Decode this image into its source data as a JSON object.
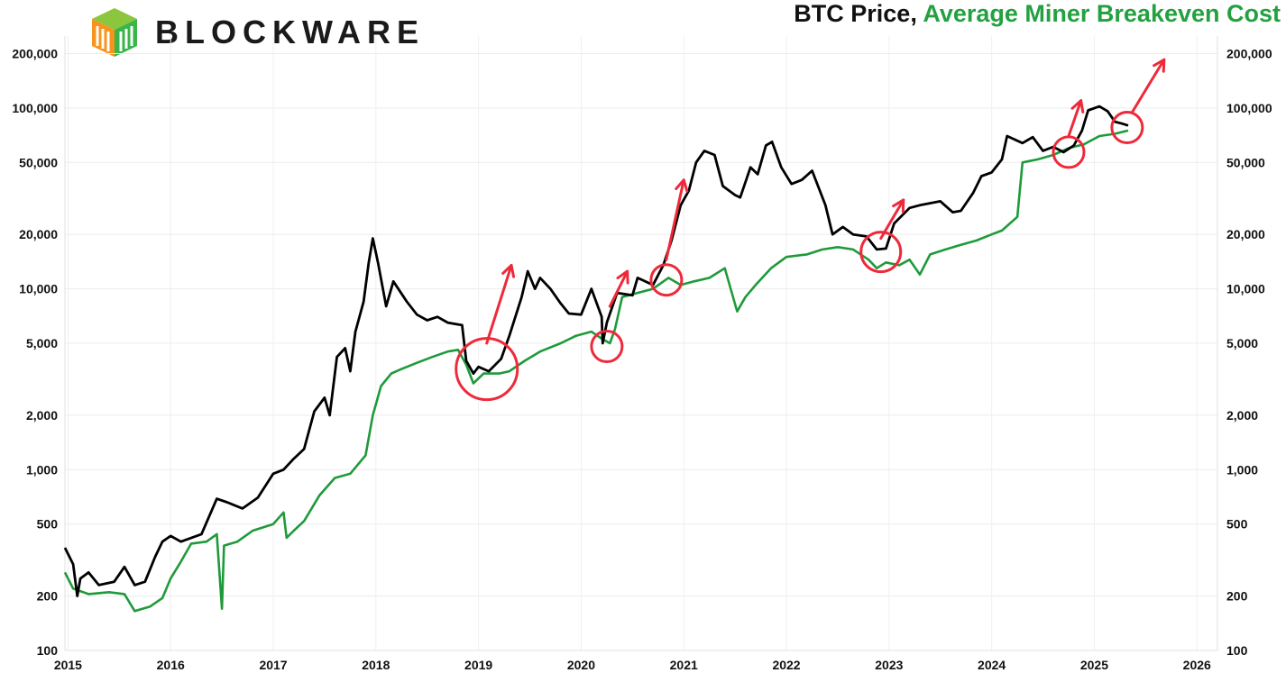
{
  "brand": {
    "name": "BLOCKWARE",
    "logo_icon": "blockware-cube-logo"
  },
  "title": {
    "part1": "BTC Price",
    "sep": ", ",
    "part2": "Average Miner Breakeven Cost"
  },
  "colors": {
    "price": "#000000",
    "breakeven": "#1f9a3b",
    "annotation": "#ee2a3a",
    "title_green": "#23a140"
  },
  "chart_data": {
    "type": "line",
    "title": "BTC Price, Average Miner Breakeven Cost",
    "yscale": "log",
    "ylim": [
      100,
      250000
    ],
    "xlim": [
      2014.97,
      2026.2
    ],
    "yticks": [
      100,
      200,
      500,
      1000,
      2000,
      5000,
      10000,
      20000,
      50000,
      100000,
      200000
    ],
    "ytick_labels": [
      "100",
      "200",
      "500",
      "1,000",
      "2,000",
      "5,000",
      "10,000",
      "20,000",
      "50,000",
      "100,000",
      "200,000"
    ],
    "xticks": [
      2015,
      2016,
      2017,
      2018,
      2019,
      2020,
      2021,
      2022,
      2023,
      2024,
      2025,
      2026
    ],
    "xtick_labels": [
      "2015",
      "2016",
      "2017",
      "2018",
      "2019",
      "2020",
      "2021",
      "2022",
      "2023",
      "2024",
      "2025",
      "2026"
    ],
    "grid": true,
    "series": [
      {
        "name": "BTC Price",
        "color": "#000000",
        "points": [
          [
            2014.97,
            370
          ],
          [
            2015.05,
            300
          ],
          [
            2015.09,
            200
          ],
          [
            2015.12,
            250
          ],
          [
            2015.2,
            270
          ],
          [
            2015.3,
            230
          ],
          [
            2015.45,
            240
          ],
          [
            2015.55,
            290
          ],
          [
            2015.65,
            230
          ],
          [
            2015.75,
            240
          ],
          [
            2015.85,
            330
          ],
          [
            2015.92,
            400
          ],
          [
            2016.0,
            430
          ],
          [
            2016.1,
            400
          ],
          [
            2016.3,
            440
          ],
          [
            2016.45,
            690
          ],
          [
            2016.55,
            660
          ],
          [
            2016.7,
            610
          ],
          [
            2016.85,
            700
          ],
          [
            2017.0,
            950
          ],
          [
            2017.1,
            1000
          ],
          [
            2017.2,
            1150
          ],
          [
            2017.3,
            1300
          ],
          [
            2017.4,
            2100
          ],
          [
            2017.5,
            2500
          ],
          [
            2017.55,
            2000
          ],
          [
            2017.62,
            4200
          ],
          [
            2017.7,
            4700
          ],
          [
            2017.75,
            3500
          ],
          [
            2017.8,
            5800
          ],
          [
            2017.88,
            8500
          ],
          [
            2017.93,
            14000
          ],
          [
            2017.97,
            19000
          ],
          [
            2018.02,
            14000
          ],
          [
            2018.1,
            8000
          ],
          [
            2018.17,
            11000
          ],
          [
            2018.3,
            8500
          ],
          [
            2018.4,
            7200
          ],
          [
            2018.5,
            6700
          ],
          [
            2018.6,
            7000
          ],
          [
            2018.7,
            6500
          ],
          [
            2018.84,
            6300
          ],
          [
            2018.88,
            4000
          ],
          [
            2018.95,
            3400
          ],
          [
            2019.0,
            3700
          ],
          [
            2019.1,
            3500
          ],
          [
            2019.22,
            4100
          ],
          [
            2019.3,
            5500
          ],
          [
            2019.42,
            9000
          ],
          [
            2019.48,
            12500
          ],
          [
            2019.55,
            10000
          ],
          [
            2019.6,
            11500
          ],
          [
            2019.7,
            10000
          ],
          [
            2019.8,
            8300
          ],
          [
            2019.88,
            7300
          ],
          [
            2020.0,
            7200
          ],
          [
            2020.1,
            10000
          ],
          [
            2020.2,
            7000
          ],
          [
            2020.21,
            5000
          ],
          [
            2020.25,
            6500
          ],
          [
            2020.35,
            9500
          ],
          [
            2020.5,
            9200
          ],
          [
            2020.55,
            11500
          ],
          [
            2020.7,
            10500
          ],
          [
            2020.8,
            13500
          ],
          [
            2020.88,
            18500
          ],
          [
            2020.97,
            29000
          ],
          [
            2021.05,
            35000
          ],
          [
            2021.12,
            50000
          ],
          [
            2021.2,
            58000
          ],
          [
            2021.3,
            55000
          ],
          [
            2021.38,
            37000
          ],
          [
            2021.5,
            33000
          ],
          [
            2021.55,
            32000
          ],
          [
            2021.65,
            47000
          ],
          [
            2021.72,
            43000
          ],
          [
            2021.8,
            62000
          ],
          [
            2021.86,
            65000
          ],
          [
            2021.95,
            47000
          ],
          [
            2022.05,
            38000
          ],
          [
            2022.15,
            40000
          ],
          [
            2022.25,
            45000
          ],
          [
            2022.38,
            29000
          ],
          [
            2022.45,
            20000
          ],
          [
            2022.55,
            22000
          ],
          [
            2022.65,
            20000
          ],
          [
            2022.78,
            19500
          ],
          [
            2022.88,
            16500
          ],
          [
            2022.97,
            16700
          ],
          [
            2023.05,
            23000
          ],
          [
            2023.2,
            28000
          ],
          [
            2023.3,
            29000
          ],
          [
            2023.5,
            30500
          ],
          [
            2023.62,
            26500
          ],
          [
            2023.7,
            27000
          ],
          [
            2023.82,
            34000
          ],
          [
            2023.9,
            42000
          ],
          [
            2024.0,
            44000
          ],
          [
            2024.1,
            52000
          ],
          [
            2024.15,
            70000
          ],
          [
            2024.3,
            64000
          ],
          [
            2024.4,
            69000
          ],
          [
            2024.5,
            58000
          ],
          [
            2024.6,
            61000
          ],
          [
            2024.7,
            57000
          ],
          [
            2024.8,
            62000
          ],
          [
            2024.88,
            75000
          ],
          [
            2024.94,
            97000
          ],
          [
            2025.05,
            102000
          ],
          [
            2025.13,
            96000
          ],
          [
            2025.2,
            84000
          ],
          [
            2025.27,
            82000
          ],
          [
            2025.33,
            80000
          ]
        ]
      },
      {
        "name": "Average Miner Breakeven Cost",
        "color": "#1f9a3b",
        "points": [
          [
            2014.97,
            270
          ],
          [
            2015.05,
            220
          ],
          [
            2015.2,
            205
          ],
          [
            2015.4,
            210
          ],
          [
            2015.55,
            205
          ],
          [
            2015.65,
            165
          ],
          [
            2015.8,
            175
          ],
          [
            2015.92,
            195
          ],
          [
            2016.0,
            250
          ],
          [
            2016.1,
            310
          ],
          [
            2016.2,
            390
          ],
          [
            2016.35,
            400
          ],
          [
            2016.45,
            440
          ],
          [
            2016.5,
            170
          ],
          [
            2016.52,
            380
          ],
          [
            2016.65,
            400
          ],
          [
            2016.8,
            460
          ],
          [
            2017.0,
            500
          ],
          [
            2017.1,
            580
          ],
          [
            2017.13,
            420
          ],
          [
            2017.2,
            460
          ],
          [
            2017.3,
            520
          ],
          [
            2017.45,
            720
          ],
          [
            2017.6,
            900
          ],
          [
            2017.75,
            950
          ],
          [
            2017.9,
            1200
          ],
          [
            2017.97,
            2000
          ],
          [
            2018.05,
            2900
          ],
          [
            2018.15,
            3400
          ],
          [
            2018.25,
            3600
          ],
          [
            2018.4,
            3900
          ],
          [
            2018.55,
            4200
          ],
          [
            2018.7,
            4500
          ],
          [
            2018.8,
            4600
          ],
          [
            2018.88,
            3800
          ],
          [
            2018.95,
            3000
          ],
          [
            2019.05,
            3400
          ],
          [
            2019.2,
            3400
          ],
          [
            2019.3,
            3500
          ],
          [
            2019.45,
            4000
          ],
          [
            2019.6,
            4500
          ],
          [
            2019.8,
            5000
          ],
          [
            2019.95,
            5500
          ],
          [
            2020.1,
            5800
          ],
          [
            2020.2,
            5300
          ],
          [
            2020.28,
            5000
          ],
          [
            2020.33,
            6000
          ],
          [
            2020.4,
            9000
          ],
          [
            2020.55,
            9500
          ],
          [
            2020.7,
            10000
          ],
          [
            2020.85,
            11500
          ],
          [
            2020.97,
            10500
          ],
          [
            2021.1,
            11000
          ],
          [
            2021.25,
            11500
          ],
          [
            2021.4,
            13000
          ],
          [
            2021.52,
            7500
          ],
          [
            2021.6,
            9000
          ],
          [
            2021.7,
            10500
          ],
          [
            2021.85,
            13000
          ],
          [
            2022.0,
            15000
          ],
          [
            2022.2,
            15500
          ],
          [
            2022.35,
            16500
          ],
          [
            2022.5,
            17000
          ],
          [
            2022.65,
            16500
          ],
          [
            2022.8,
            14500
          ],
          [
            2022.88,
            13000
          ],
          [
            2022.97,
            14000
          ],
          [
            2023.1,
            13500
          ],
          [
            2023.2,
            14500
          ],
          [
            2023.3,
            12000
          ],
          [
            2023.4,
            15500
          ],
          [
            2023.55,
            16500
          ],
          [
            2023.7,
            17500
          ],
          [
            2023.85,
            18500
          ],
          [
            2024.0,
            20000
          ],
          [
            2024.1,
            21000
          ],
          [
            2024.25,
            25000
          ],
          [
            2024.3,
            50000
          ],
          [
            2024.45,
            52000
          ],
          [
            2024.6,
            55000
          ],
          [
            2024.75,
            60000
          ],
          [
            2024.9,
            63000
          ],
          [
            2025.05,
            70000
          ],
          [
            2025.2,
            72000
          ],
          [
            2025.33,
            75000
          ]
        ]
      }
    ],
    "annotations": {
      "circles": [
        [
          2019.08,
          3600,
          34
        ],
        [
          2020.25,
          4800,
          17
        ],
        [
          2020.83,
          11200,
          17
        ],
        [
          2022.92,
          16000,
          22
        ],
        [
          2024.75,
          57000,
          17
        ],
        [
          2025.32,
          78000,
          17
        ]
      ],
      "arrows": [
        [
          2019.08,
          5000,
          2019.32,
          13500
        ],
        [
          2020.28,
          8000,
          2020.45,
          12500
        ],
        [
          2020.83,
          14500,
          2021.0,
          40000
        ],
        [
          2022.92,
          19000,
          2023.14,
          31000
        ],
        [
          2024.75,
          70000,
          2024.87,
          110000
        ],
        [
          2025.37,
          95000,
          2025.68,
          185000
        ]
      ]
    }
  }
}
